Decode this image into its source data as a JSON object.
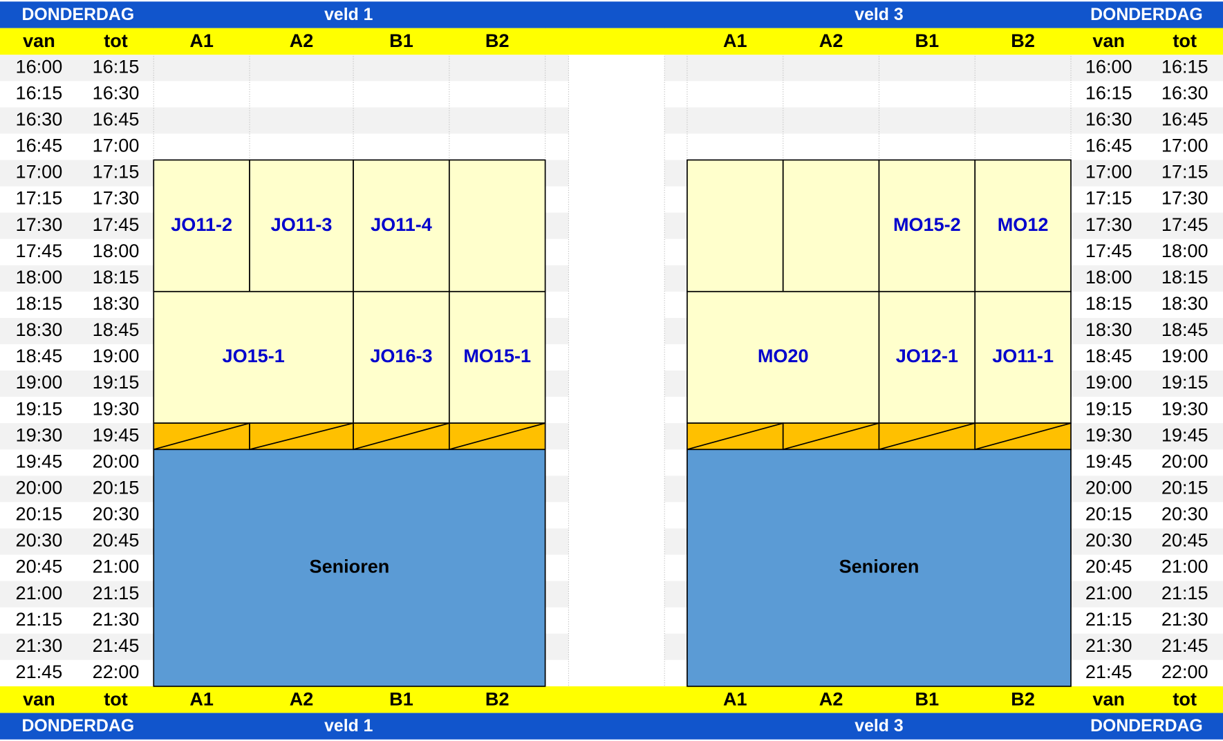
{
  "header": {
    "day": "DONDERDAG",
    "field_left": "veld 1",
    "field_right": "veld 3"
  },
  "column_headers": {
    "van": "van",
    "tot": "tot",
    "fields": [
      "A1",
      "A2",
      "B1",
      "B2"
    ]
  },
  "time_slots": [
    [
      "16:00",
      "16:15"
    ],
    [
      "16:15",
      "16:30"
    ],
    [
      "16:30",
      "16:45"
    ],
    [
      "16:45",
      "17:00"
    ],
    [
      "17:00",
      "17:15"
    ],
    [
      "17:15",
      "17:30"
    ],
    [
      "17:30",
      "17:45"
    ],
    [
      "17:45",
      "18:00"
    ],
    [
      "18:00",
      "18:15"
    ],
    [
      "18:15",
      "18:30"
    ],
    [
      "18:30",
      "18:45"
    ],
    [
      "18:45",
      "19:00"
    ],
    [
      "19:00",
      "19:15"
    ],
    [
      "19:15",
      "19:30"
    ],
    [
      "19:30",
      "19:45"
    ],
    [
      "19:45",
      "20:00"
    ],
    [
      "20:00",
      "20:15"
    ],
    [
      "20:15",
      "20:30"
    ],
    [
      "20:30",
      "20:45"
    ],
    [
      "20:45",
      "21:00"
    ],
    [
      "21:00",
      "21:15"
    ],
    [
      "21:15",
      "21:30"
    ],
    [
      "21:30",
      "21:45"
    ],
    [
      "21:45",
      "22:00"
    ]
  ],
  "veld1_blocks": [
    "JO11-2",
    "JO11-3",
    "JO11-4",
    "JO15-1",
    "JO16-3",
    "MO15-1",
    "Senioren"
  ],
  "veld3_blocks": [
    "MO15-2",
    "MO12",
    "MO20",
    "JO12-1",
    "JO11-1",
    "Senioren"
  ]
}
